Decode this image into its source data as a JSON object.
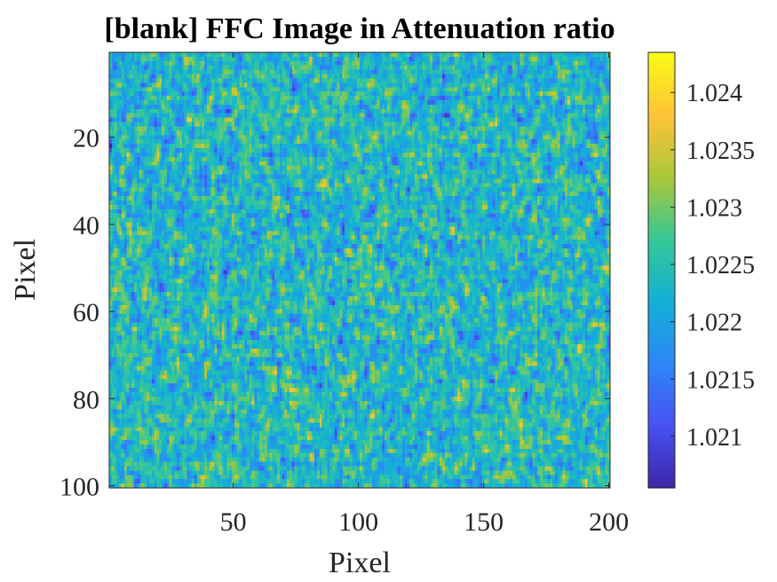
{
  "chart_data": {
    "type": "heatmap",
    "title": "[blank] FFC Image in Attenuation ratio",
    "xlabel": "Pixel",
    "ylabel": "Pixel",
    "xlim": [
      0.5,
      200.5
    ],
    "ylim": [
      0.5,
      100.5
    ],
    "y_direction": "reverse",
    "grid": false,
    "colormap": "parula",
    "rows": 100,
    "cols": 200,
    "x_ticks": [
      50,
      100,
      150,
      200
    ],
    "y_ticks": [
      20,
      40,
      60,
      80,
      100
    ],
    "colorbar": {
      "range": [
        1.02055,
        1.02435
      ],
      "ticks": [
        1.021,
        1.0215,
        1.022,
        1.0225,
        1.023,
        1.0235,
        1.024
      ],
      "tick_labels": [
        "1.021",
        "1.0215",
        "1.022",
        "1.0225",
        "1.023",
        "1.0235",
        "1.024"
      ]
    },
    "value_stats": {
      "mean": 1.02235,
      "std": 0.0005,
      "min": 1.02055,
      "max": 1.02435
    },
    "field_description": "spatially uncorrelated noise around the mean"
  }
}
